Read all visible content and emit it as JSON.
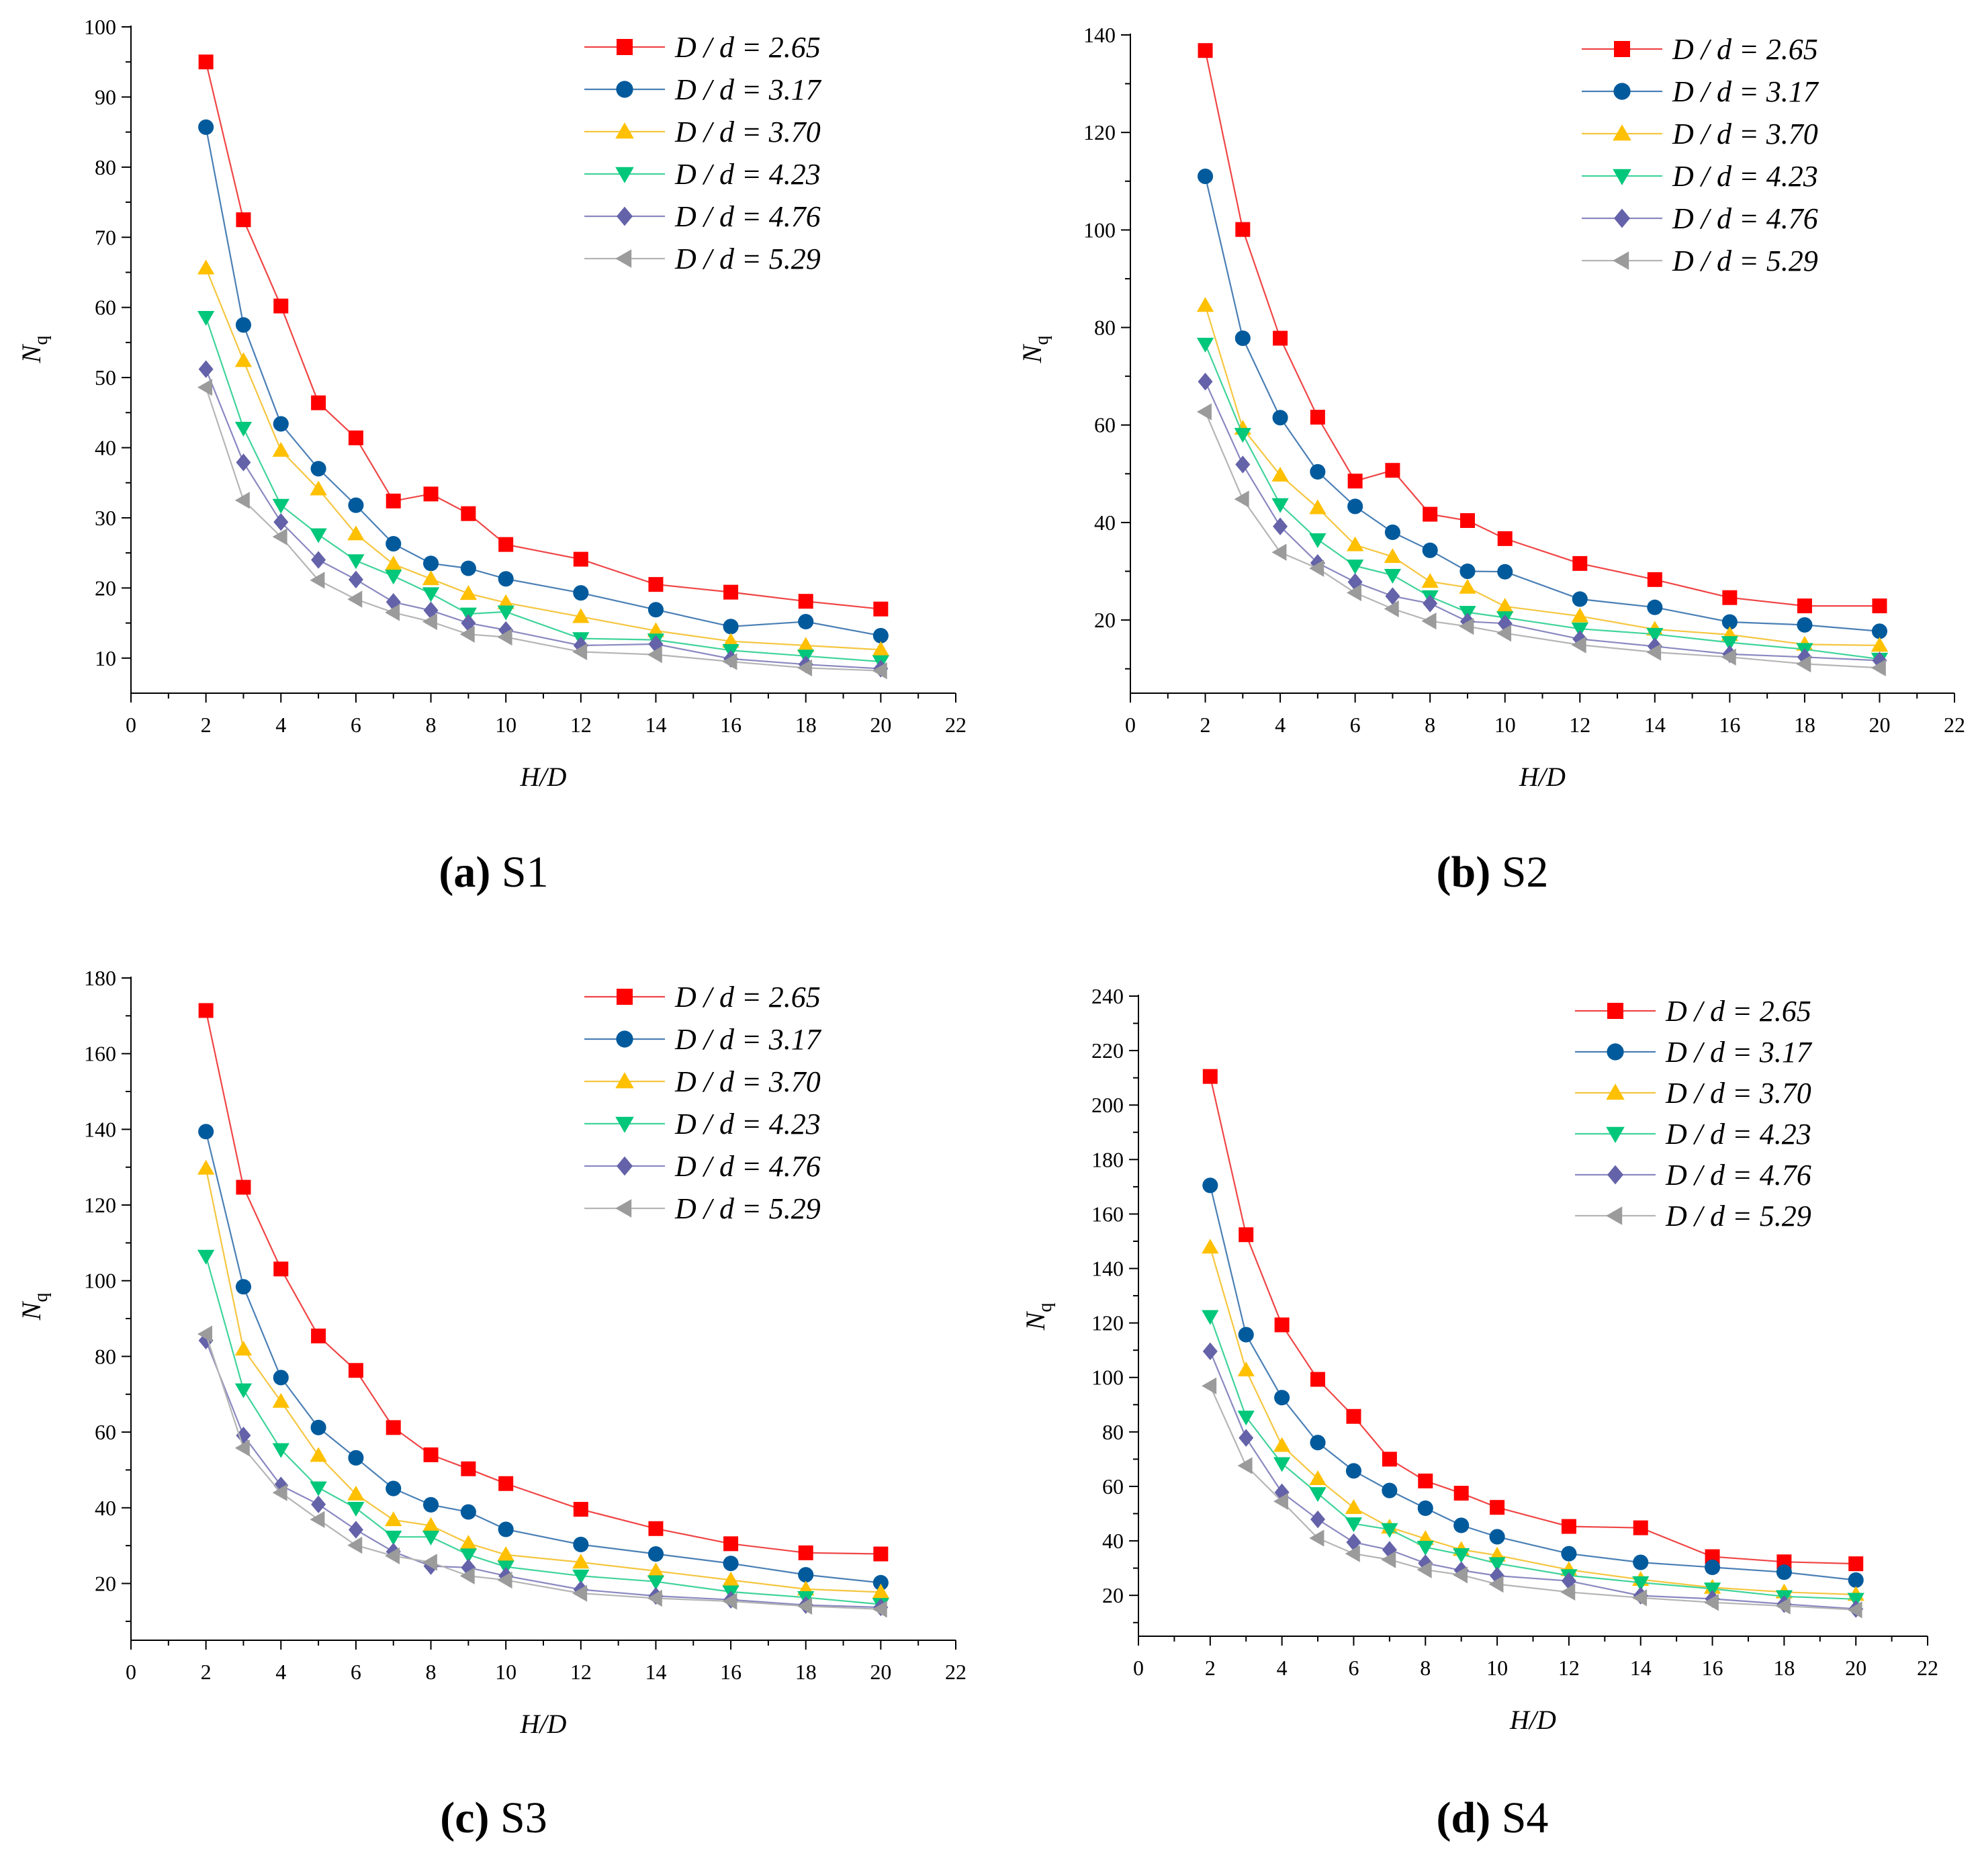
{
  "figure": {
    "colors": {
      "D / d = 2.65": "#ff0000",
      "D / d = 3.17": "#005a9c",
      "D / d = 3.70": "#ffc000",
      "D / d = 4.23": "#00c77a",
      "D / d = 4.76": "#6462a8",
      "D / d = 5.29": "#9b9b9b"
    },
    "line_colors": {
      "D / d = 2.65": "#f04545",
      "D / d = 3.17": "#4a7fb5",
      "D / d = 3.70": "#f5c640",
      "D / d = 4.23": "#40d49a",
      "D / d = 4.76": "#8a88c0",
      "D / d = 5.29": "#b5b5b5"
    },
    "markers": {
      "D / d = 2.65": "square",
      "D / d = 3.17": "circle",
      "D / d = 3.70": "triangle-up",
      "D / d = 4.23": "triangle-down",
      "D / d = 4.76": "diamond",
      "D / d = 5.29": "triangle-left"
    }
  },
  "chart_data": [
    {
      "type": "line",
      "caption_letter": "(a)",
      "caption_text": " S1",
      "xlabel": "H/D",
      "ylabel": "N",
      "ylabel_sub": "q",
      "xlim": [
        0,
        22
      ],
      "ylim": [
        5,
        100
      ],
      "xticks": [
        0,
        2,
        4,
        6,
        8,
        10,
        12,
        14,
        16,
        18,
        20,
        22
      ],
      "yticks": [
        10,
        20,
        30,
        40,
        50,
        60,
        70,
        80,
        90,
        100
      ],
      "x": [
        2,
        3,
        4,
        5,
        6,
        7,
        8,
        9,
        10,
        12,
        14,
        16,
        18,
        20
      ],
      "series": [
        {
          "name": "D / d = 2.65",
          "values": [
            95.0,
            72.5,
            60.2,
            46.4,
            41.4,
            32.4,
            33.4,
            30.6,
            26.2,
            24.1,
            20.5,
            19.4,
            18.1,
            17.0
          ]
        },
        {
          "name": "D / d = 3.17",
          "values": [
            85.7,
            57.5,
            43.4,
            37.0,
            31.8,
            26.3,
            23.5,
            22.8,
            21.3,
            19.3,
            16.9,
            14.5,
            15.2,
            13.2
          ]
        },
        {
          "name": "D / d = 3.70",
          "values": [
            65.6,
            52.4,
            39.6,
            34.1,
            27.7,
            23.4,
            21.3,
            19.2,
            17.9,
            15.9,
            13.9,
            12.4,
            11.8,
            11.2
          ]
        },
        {
          "name": "D / d = 4.23",
          "values": [
            58.6,
            42.8,
            31.8,
            27.6,
            23.9,
            21.7,
            19.2,
            16.3,
            16.6,
            12.8,
            12.6,
            11.1,
            10.3,
            9.5
          ]
        },
        {
          "name": "D / d = 4.76",
          "values": [
            51.2,
            37.9,
            29.4,
            24.0,
            21.2,
            18.0,
            16.8,
            15.0,
            14.0,
            11.8,
            12.0,
            9.9,
            9.1,
            8.5
          ]
        },
        {
          "name": "D / d = 5.29",
          "values": [
            48.6,
            32.5,
            27.3,
            21.1,
            18.4,
            16.5,
            15.2,
            13.4,
            13.0,
            10.9,
            10.5,
            9.5,
            8.6,
            8.2
          ]
        }
      ]
    },
    {
      "type": "line",
      "caption_letter": "(b)",
      "caption_text": " S2",
      "xlabel": "H/D",
      "ylabel": "N",
      "ylabel_sub": "q",
      "xlim": [
        0,
        22
      ],
      "ylim": [
        5,
        140
      ],
      "xticks": [
        0,
        2,
        4,
        6,
        8,
        10,
        12,
        14,
        16,
        18,
        20,
        22
      ],
      "yticks": [
        20,
        40,
        60,
        80,
        100,
        120,
        140
      ],
      "x": [
        2,
        3,
        4,
        5,
        6,
        7,
        8,
        9,
        10,
        12,
        14,
        16,
        18,
        20
      ],
      "series": [
        {
          "name": "D / d = 2.65",
          "values": [
            136.8,
            100.1,
            77.8,
            61.6,
            48.5,
            50.7,
            41.7,
            40.4,
            36.7,
            31.6,
            28.3,
            24.6,
            22.9,
            22.9
          ]
        },
        {
          "name": "D / d = 3.17",
          "values": [
            111.0,
            77.8,
            61.5,
            50.4,
            43.3,
            38.0,
            34.3,
            30.0,
            29.9,
            24.3,
            22.6,
            19.6,
            19.0,
            17.7
          ]
        },
        {
          "name": "D / d = 3.70",
          "values": [
            84.5,
            59.3,
            49.7,
            43.0,
            35.4,
            33.0,
            27.9,
            26.7,
            22.8,
            20.8,
            18.1,
            17.0,
            15.0,
            14.8
          ]
        },
        {
          "name": "D / d = 4.23",
          "values": [
            76.6,
            58.1,
            43.7,
            36.5,
            31.1,
            29.2,
            24.8,
            21.6,
            20.5,
            18.2,
            17.1,
            15.4,
            14.0,
            12.0
          ]
        },
        {
          "name": "D / d = 4.76",
          "values": [
            68.9,
            51.9,
            39.2,
            31.7,
            27.8,
            24.9,
            23.4,
            19.7,
            19.3,
            16.1,
            14.6,
            13.0,
            12.4,
            11.7
          ]
        },
        {
          "name": "D / d = 5.29",
          "values": [
            62.7,
            44.8,
            33.9,
            30.6,
            25.6,
            22.3,
            19.8,
            18.7,
            17.3,
            14.9,
            13.4,
            12.4,
            11.0,
            10.2
          ]
        }
      ]
    },
    {
      "type": "line",
      "caption_letter": "(c)",
      "caption_text": " S3",
      "xlabel": "H/D",
      "ylabel": "N",
      "ylabel_sub": "q",
      "xlim": [
        0,
        22
      ],
      "ylim": [
        5,
        180
      ],
      "xticks": [
        0,
        2,
        4,
        6,
        8,
        10,
        12,
        14,
        16,
        18,
        20,
        22
      ],
      "yticks": [
        20,
        40,
        60,
        80,
        100,
        120,
        140,
        160,
        180
      ],
      "x": [
        2,
        3,
        4,
        5,
        6,
        7,
        8,
        9,
        10,
        12,
        14,
        16,
        18,
        20
      ],
      "series": [
        {
          "name": "D / d = 2.65",
          "values": [
            171.4,
            124.7,
            103.1,
            85.4,
            76.3,
            61.2,
            54.0,
            50.3,
            46.4,
            39.6,
            34.5,
            30.5,
            28.1,
            27.8
          ]
        },
        {
          "name": "D / d = 3.17",
          "values": [
            139.4,
            98.4,
            74.4,
            61.2,
            53.2,
            45.1,
            40.8,
            38.9,
            34.3,
            30.3,
            27.8,
            25.3,
            22.3,
            20.2
          ]
        },
        {
          "name": "D / d = 3.70",
          "values": [
            129.7,
            81.9,
            68.1,
            53.8,
            43.6,
            36.8,
            35.3,
            30.6,
            27.6,
            25.6,
            23.3,
            20.9,
            18.5,
            17.7
          ]
        },
        {
          "name": "D / d = 4.23",
          "values": [
            106.5,
            71.2,
            55.4,
            45.3,
            39.9,
            32.3,
            32.3,
            27.6,
            24.4,
            22.0,
            20.5,
            17.8,
            16.3,
            14.5
          ]
        },
        {
          "name": "D / d = 4.76",
          "values": [
            84.2,
            59.1,
            45.9,
            40.9,
            34.2,
            28.4,
            24.6,
            24.2,
            22.0,
            18.4,
            16.7,
            15.7,
            14.3,
            13.7
          ]
        },
        {
          "name": "D / d = 5.29",
          "values": [
            85.9,
            55.8,
            44.0,
            36.9,
            30.1,
            27.3,
            25.6,
            22.0,
            20.9,
            17.4,
            16.1,
            15.3,
            14.0,
            13.2
          ]
        }
      ]
    },
    {
      "type": "line",
      "caption_letter": "(d)",
      "caption_text": " S4",
      "xlabel": "H/D",
      "ylabel": "N",
      "ylabel_sub": "q",
      "xlim": [
        0,
        22
      ],
      "ylim": [
        5,
        240
      ],
      "xticks": [
        0,
        2,
        4,
        6,
        8,
        10,
        12,
        14,
        16,
        18,
        20,
        22
      ],
      "yticks": [
        20,
        40,
        60,
        80,
        100,
        120,
        140,
        160,
        180,
        200,
        220,
        240
      ],
      "x": [
        2,
        3,
        4,
        5,
        6,
        7,
        8,
        9,
        10,
        12,
        14,
        16,
        18,
        20
      ],
      "series": [
        {
          "name": "D / d = 2.65",
          "values": [
            210.5,
            152.4,
            119.3,
            99.3,
            85.7,
            70.0,
            62.0,
            57.5,
            52.3,
            45.3,
            44.8,
            34.2,
            32.3,
            31.6
          ]
        },
        {
          "name": "D / d = 3.17",
          "values": [
            170.5,
            115.7,
            92.6,
            76.1,
            65.7,
            58.5,
            52.0,
            45.7,
            41.5,
            35.3,
            32.1,
            30.3,
            28.5,
            25.6
          ]
        },
        {
          "name": "D / d = 3.70",
          "values": [
            147.8,
            102.7,
            75.0,
            62.8,
            52.2,
            45.0,
            40.8,
            36.8,
            34.7,
            29.4,
            25.8,
            22.9,
            21.2,
            20.3
          ]
        },
        {
          "name": "D / d = 4.23",
          "values": [
            122.4,
            85.5,
            68.4,
            57.4,
            46.3,
            44.2,
            37.7,
            35.0,
            31.7,
            27.3,
            24.7,
            22.4,
            19.6,
            18.6
          ]
        },
        {
          "name": "D / d = 4.76",
          "values": [
            109.6,
            77.8,
            57.8,
            47.9,
            39.5,
            36.7,
            31.8,
            29.2,
            27.2,
            25.3,
            19.9,
            18.7,
            16.8,
            15.0
          ]
        },
        {
          "name": "D / d = 5.29",
          "values": [
            96.9,
            67.6,
            54.5,
            41.0,
            35.3,
            33.1,
            29.4,
            27.5,
            24.1,
            21.2,
            19.1,
            17.4,
            16.1,
            14.7
          ]
        }
      ]
    }
  ]
}
